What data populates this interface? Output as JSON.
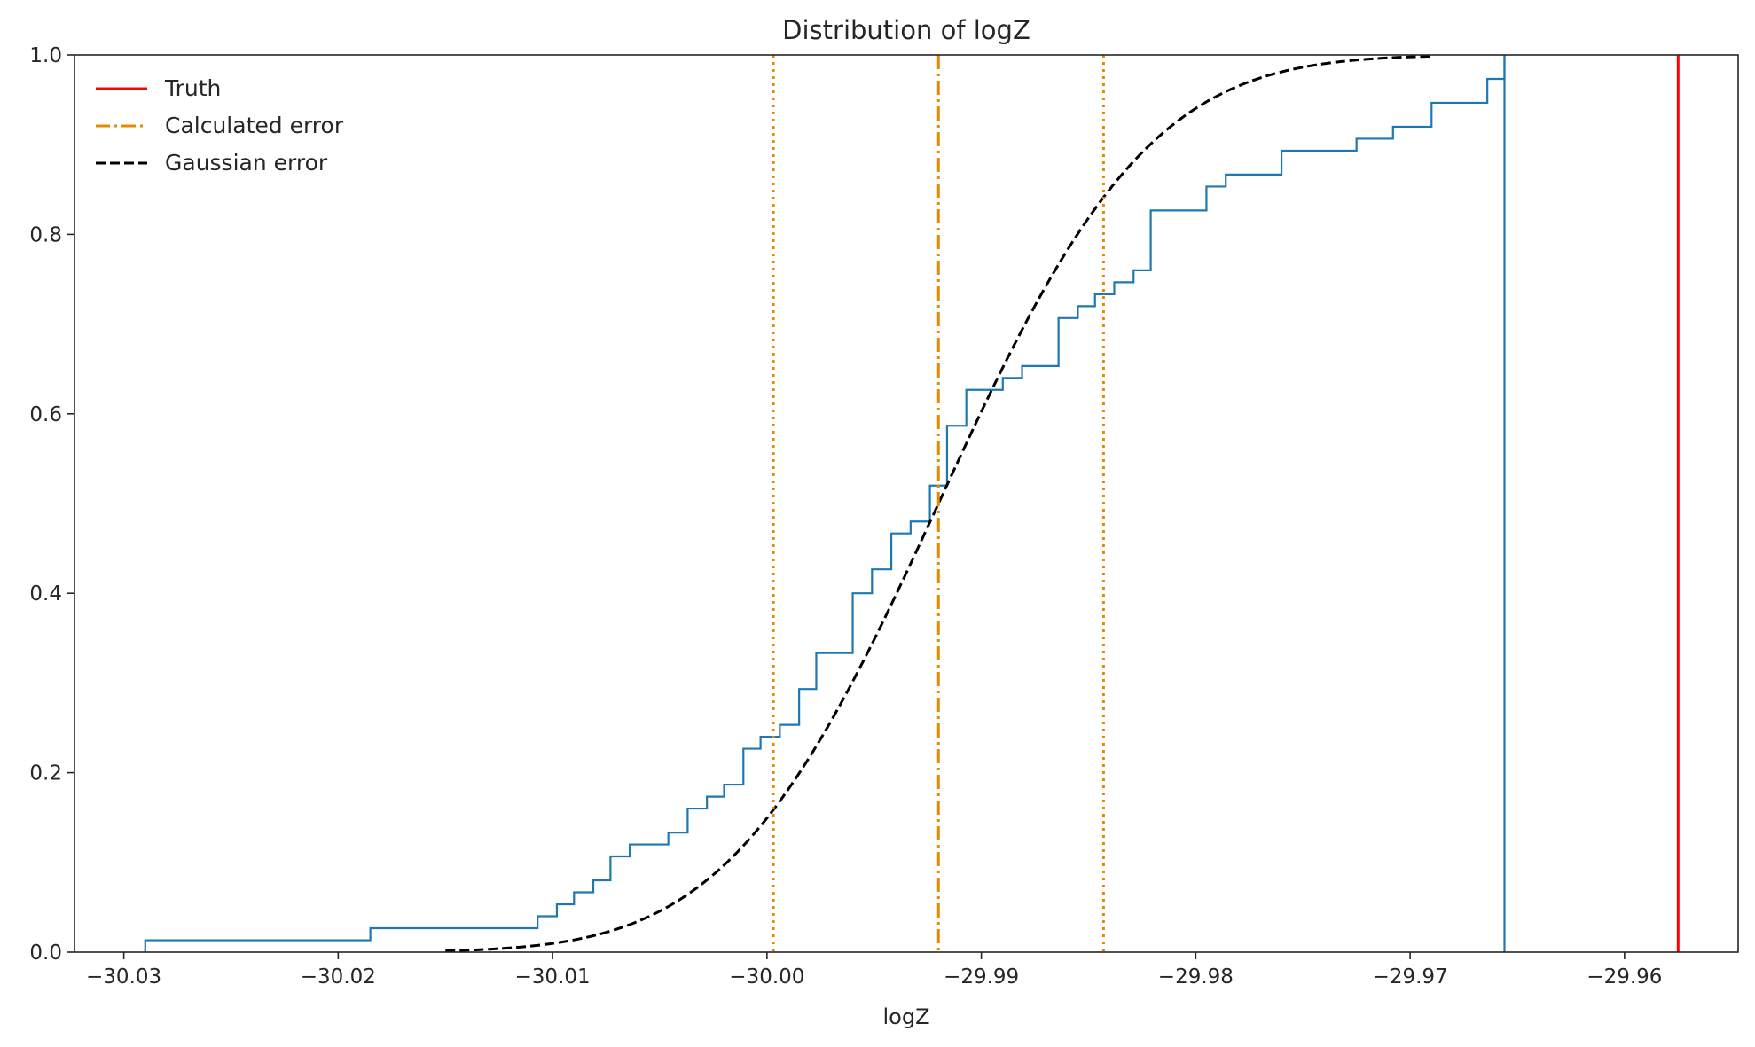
{
  "chart_data": {
    "type": "line",
    "title": "Distribution of logZ",
    "xlabel": "logZ",
    "ylabel": "",
    "xlim": [
      -30.0323,
      -29.9547
    ],
    "ylim": [
      0.0,
      1.0
    ],
    "xticks": [
      -30.03,
      -30.02,
      -30.01,
      -30.0,
      -29.99,
      -29.98,
      -29.97,
      -29.96
    ],
    "xtick_labels": [
      "−30.03",
      "−30.02",
      "−30.01",
      "−30.00",
      "−29.99",
      "−29.98",
      "−29.97",
      "−29.96"
    ],
    "yticks": [
      0.0,
      0.2,
      0.4,
      0.6,
      0.8,
      1.0
    ],
    "ytick_labels": [
      "0.0",
      "0.2",
      "0.4",
      "0.6",
      "0.8",
      "1.0"
    ],
    "grid": false,
    "legend_position": "top-left",
    "legend": [
      {
        "label": "Truth",
        "color": "#ff0000",
        "style": "solid"
      },
      {
        "label": "Calculated error",
        "color": "#e68a00",
        "style": "dashdot"
      },
      {
        "label": "Gaussian error",
        "color": "#000000",
        "style": "dashed"
      }
    ],
    "truth": {
      "x": -29.9575,
      "color": "#ff0000"
    },
    "calculated_error": {
      "mean": -29.992,
      "lower": -29.9997,
      "upper": -29.9843,
      "color": "#e68a00"
    },
    "gaussian_error": {
      "mean": -29.992,
      "sigma": 0.0077,
      "x_start": -30.015,
      "x_end": -29.969,
      "color": "#000000"
    },
    "empirical_cdf": {
      "color": "#1f77b4",
      "x": [
        -30.029,
        -30.0185,
        -30.0107,
        -30.0098,
        -30.009,
        -30.0081,
        -30.0073,
        -30.0064,
        -30.0046,
        -30.0037,
        -30.0028,
        -30.002,
        -30.0011,
        -30.0003,
        -29.9994,
        -29.9985,
        -29.9977,
        -29.996,
        -29.9951,
        -29.9942,
        -29.9933,
        -29.9924,
        -29.9916,
        -29.9907,
        -29.989,
        -29.9881,
        -29.9864,
        -29.9855,
        -29.9847,
        -29.9838,
        -29.9829,
        -29.9821,
        -29.9795,
        -29.9786,
        -29.976,
        -29.9725,
        -29.9708,
        -29.969,
        -29.9664,
        -29.9656
      ],
      "y": [
        0.0133,
        0.0267,
        0.04,
        0.0533,
        0.0667,
        0.08,
        0.1067,
        0.12,
        0.1333,
        0.16,
        0.1733,
        0.1867,
        0.2267,
        0.24,
        0.2533,
        0.2933,
        0.3333,
        0.4,
        0.4267,
        0.4667,
        0.48,
        0.52,
        0.5867,
        0.6267,
        0.64,
        0.6533,
        0.7067,
        0.72,
        0.7333,
        0.7467,
        0.76,
        0.8267,
        0.8533,
        0.8667,
        0.8933,
        0.9067,
        0.92,
        0.9467,
        0.9733,
        1.0
      ]
    }
  }
}
